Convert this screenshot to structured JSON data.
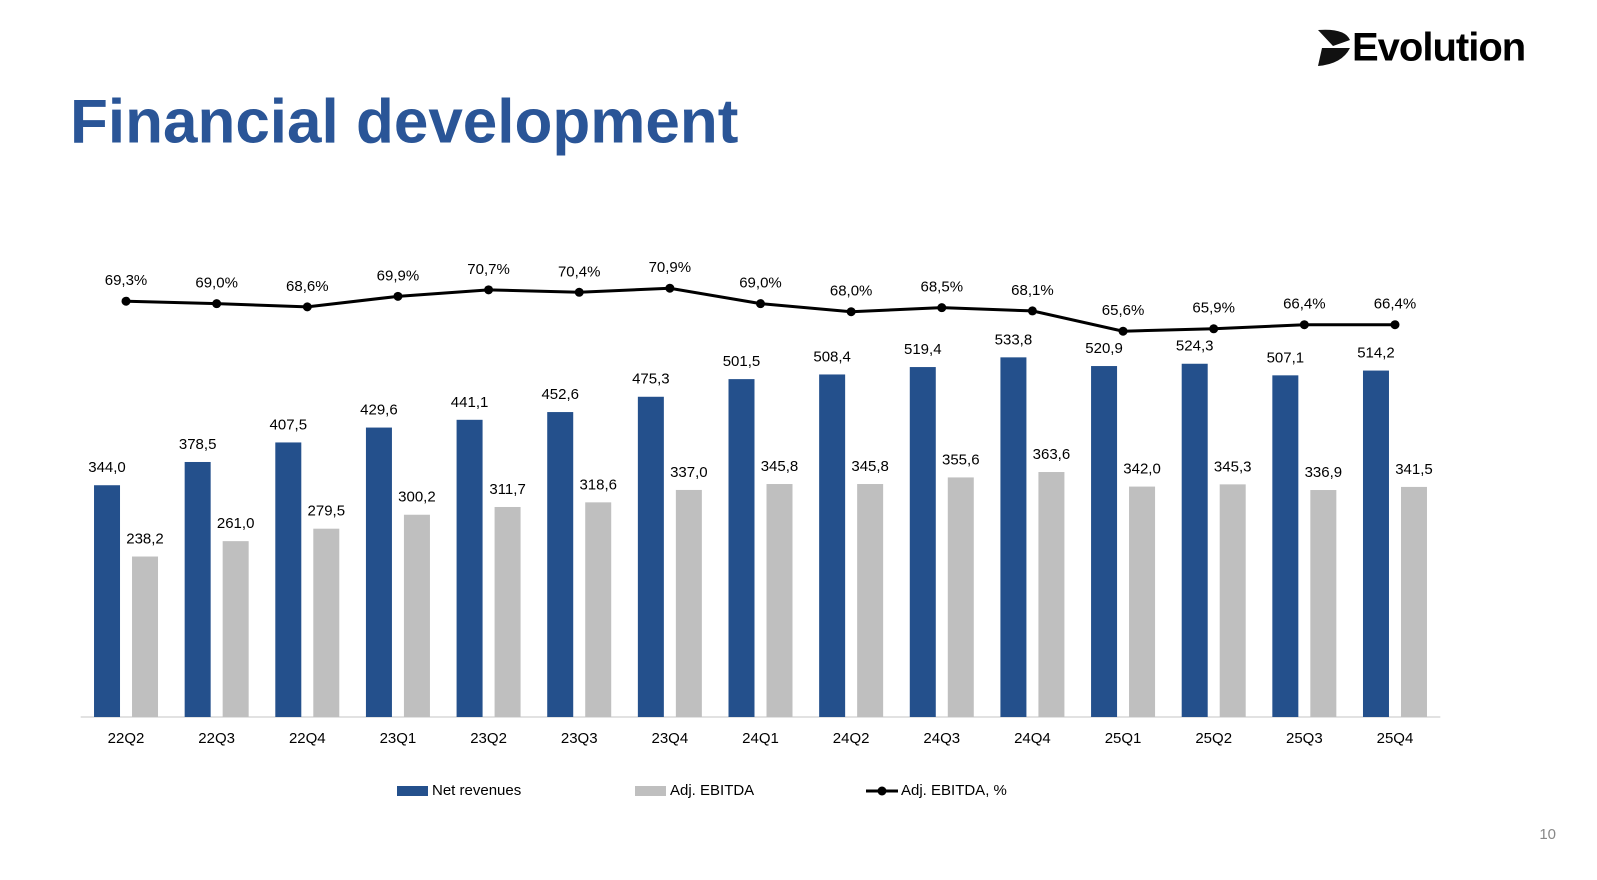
{
  "logo": "Evolution",
  "page_number": "10",
  "chart_data": {
    "type": "bar",
    "title": "Financial development",
    "categories": [
      "22Q2",
      "22Q3",
      "22Q4",
      "23Q1",
      "23Q2",
      "23Q3",
      "23Q4",
      "24Q1",
      "24Q2",
      "24Q3",
      "24Q4",
      "25Q1",
      "25Q2",
      "25Q3",
      "25Q4"
    ],
    "ylim": [
      0,
      800
    ],
    "y2lim": [
      18,
      84.5
    ],
    "legend": "bottom",
    "series": [
      {
        "name": "Net revenues",
        "type": "bar",
        "color": "#24508c",
        "values": [
          344.0,
          378.5,
          407.5,
          429.6,
          441.1,
          452.6,
          475.3,
          501.5,
          508.4,
          519.4,
          533.8,
          520.9,
          524.3,
          507.1,
          514.2
        ],
        "value_labels": [
          "344,0",
          "378,5",
          "407,5",
          "429,6",
          "441,1",
          "452,6",
          "475,3",
          "501,5",
          "508,4",
          "519,4",
          "533,8",
          "520,9",
          "524,3",
          "507,1",
          "514,2"
        ]
      },
      {
        "name": "Adj. EBITDA",
        "type": "bar",
        "color": "#bfbfbf",
        "values": [
          238.2,
          261.0,
          279.5,
          300.2,
          311.7,
          318.6,
          337.0,
          345.8,
          345.8,
          355.6,
          363.6,
          342.0,
          345.3,
          336.9,
          341.5
        ],
        "value_labels": [
          "238,2",
          "261,0",
          "279,5",
          "300,2",
          "311,7",
          "318,6",
          "337,0",
          "345,8",
          "345,8",
          "355,6",
          "363,6",
          "342,0",
          "345,3",
          "336,9",
          "341,5"
        ]
      },
      {
        "name": "Adj. EBITDA, %",
        "type": "line",
        "axis": "y2",
        "color": "#000000",
        "values": [
          69.3,
          69.0,
          68.6,
          69.9,
          70.7,
          70.4,
          70.9,
          69.0,
          68.0,
          68.5,
          68.1,
          65.6,
          65.9,
          66.4,
          66.4
        ],
        "value_labels": [
          "69,3%",
          "69,0%",
          "68,6%",
          "69,9%",
          "70,7%",
          "70,4%",
          "70,9%",
          "69,0%",
          "68,0%",
          "68,5%",
          "68,1%",
          "65,6%",
          "65,9%",
          "66,4%",
          "66,4%"
        ]
      }
    ]
  }
}
